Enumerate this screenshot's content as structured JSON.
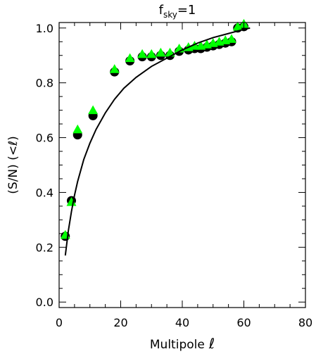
{
  "chart_data": {
    "type": "scatter",
    "title": "f",
    "title_subscript": "sky",
    "title_suffix": "=1",
    "xlabel": "Multipole",
    "xlabel_symbol": "ℓ",
    "ylabel": "(S/N) (<ℓ)",
    "xlim": [
      0,
      80
    ],
    "ylim": [
      -0.02,
      1.02
    ],
    "xticks": [
      0,
      20,
      40,
      60,
      80
    ],
    "xtick_labels": [
      "0",
      "20",
      "40",
      "60",
      "80"
    ],
    "yticks": [
      0.0,
      0.2,
      0.4,
      0.6,
      0.8,
      1.0
    ],
    "ytick_labels": [
      "0.0",
      "0.2",
      "0.4",
      "0.6",
      "0.8",
      "1.0"
    ],
    "grid": false,
    "colors": {
      "circles": "#000000",
      "triangles": "#00ff00",
      "curve": "#000000"
    },
    "series": [
      {
        "marker": "circle",
        "x": [
          2,
          4,
          6,
          11,
          18,
          23,
          27,
          30,
          33,
          36,
          39,
          42,
          44,
          46,
          48,
          50,
          52,
          54,
          56,
          58,
          60
        ],
        "values": [
          0.24,
          0.37,
          0.61,
          0.68,
          0.84,
          0.88,
          0.895,
          0.895,
          0.9,
          0.9,
          0.915,
          0.92,
          0.925,
          0.925,
          0.93,
          0.935,
          0.94,
          0.945,
          0.95,
          1.0,
          1.005
        ]
      },
      {
        "marker": "triangle",
        "x": [
          2,
          4,
          6,
          11,
          18,
          23,
          27,
          30,
          33,
          36,
          39,
          42,
          44,
          46,
          48,
          50,
          52,
          54,
          56,
          58,
          60
        ],
        "values": [
          0.24,
          0.36,
          0.625,
          0.695,
          0.845,
          0.885,
          0.9,
          0.9,
          0.905,
          0.905,
          0.92,
          0.925,
          0.93,
          0.93,
          0.935,
          0.94,
          0.945,
          0.95,
          0.955,
          1.0,
          1.01
        ]
      },
      {
        "marker": "line",
        "x": [
          2,
          3,
          4,
          5,
          6,
          8,
          10,
          12,
          15,
          18,
          21,
          25,
          30,
          35,
          40,
          45,
          50,
          55,
          60,
          62
        ],
        "values": [
          0.17,
          0.26,
          0.33,
          0.39,
          0.44,
          0.52,
          0.58,
          0.63,
          0.69,
          0.74,
          0.78,
          0.82,
          0.86,
          0.89,
          0.92,
          0.945,
          0.965,
          0.98,
          0.995,
          1.0
        ]
      }
    ]
  }
}
